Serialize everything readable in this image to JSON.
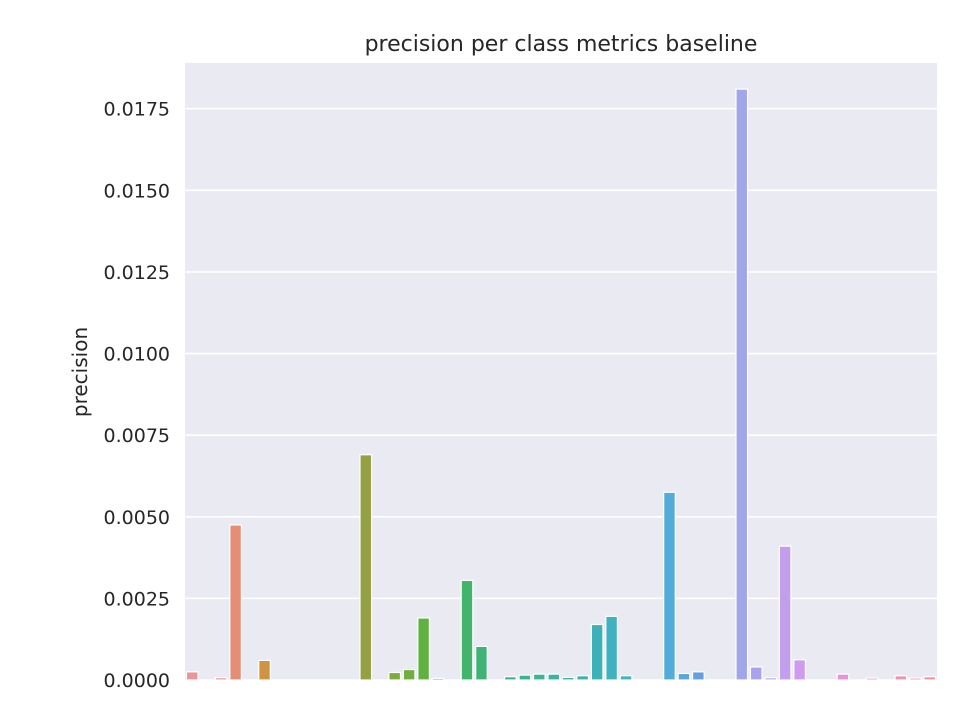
{
  "chart_data": {
    "type": "bar",
    "title": "precision per class metrics baseline",
    "xlabel": "",
    "ylabel": "precision",
    "ylim": [
      0,
      0.0189
    ],
    "yticks": [
      "0.0000",
      "0.0025",
      "0.0050",
      "0.0075",
      "0.0100",
      "0.0125",
      "0.0150",
      "0.0175"
    ],
    "ytick_values": [
      0,
      0.0025,
      0.005,
      0.0075,
      0.01,
      0.0125,
      0.015,
      0.0175
    ],
    "grid": true,
    "background": "#eaeaf2",
    "values": [
      0.00025,
      0,
      7e-05,
      0.00475,
      0,
      0.0006,
      0,
      0,
      0,
      0,
      0,
      0,
      0.0069,
      0,
      0.00023,
      0.00032,
      0.0019,
      5e-05,
      0,
      0.00305,
      0.00103,
      0,
      0.0001,
      0.00015,
      0.00018,
      0.00018,
      8e-05,
      0.00013,
      0.0017,
      0.00195,
      0.00013,
      0,
      0,
      0.00575,
      0.0002,
      0.00025,
      0,
      0,
      0.0181,
      0.0004,
      7e-05,
      0.0041,
      0.00062,
      0,
      0,
      0.00018,
      0,
      6e-05,
      0,
      0.00013,
      6e-05,
      0.0001
    ],
    "colors": [
      "#e9969b",
      "#e8938b",
      "#e69281",
      "#e58e76",
      "#d99158",
      "#cf9442",
      "#c69a3b",
      "#bd9d39",
      "#b2a03a",
      "#a9a23b",
      "#9fa43b",
      "#9aa03e",
      "#94a041",
      "#8aa73f",
      "#7eab3e",
      "#70ae3f",
      "#60b140",
      "#4fb44f",
      "#46b45c",
      "#42b46b",
      "#3fb375",
      "#3eb27e",
      "#3db288",
      "#3db291",
      "#3cb29a",
      "#3cb2a2",
      "#3cb1a9",
      "#3bb0b1",
      "#3db1b8",
      "#40b1be",
      "#43b1c6",
      "#47b1ce",
      "#4aafd4",
      "#52abd9",
      "#5aa6dd",
      "#64a0df",
      "#729ae0",
      "#8197e0",
      "#a1a6e8",
      "#a8a3ea",
      "#b3a1ec",
      "#c19fec",
      "#cf9ceb",
      "#dc98e6",
      "#e394df",
      "#e792d6",
      "#ea91cc",
      "#ea91c2",
      "#ea92b8",
      "#ea93ad",
      "#e993a7",
      "#e994a2"
    ]
  }
}
